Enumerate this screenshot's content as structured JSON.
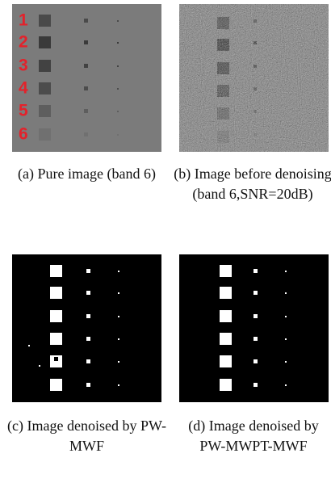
{
  "subfigures": [
    {
      "label": "(a)",
      "caption": "Pure image (band 6)",
      "row_labels": [
        "1",
        "2",
        "3",
        "4",
        "5",
        "6"
      ]
    },
    {
      "label": "(b)",
      "caption": "Image before denoising (band 6,SNR=20dB)"
    },
    {
      "label": "(c)",
      "caption": "Image denoised by PW-MWF"
    },
    {
      "label": "(d)",
      "caption": "Image denoised by PW-MWPT-MWF"
    }
  ]
}
